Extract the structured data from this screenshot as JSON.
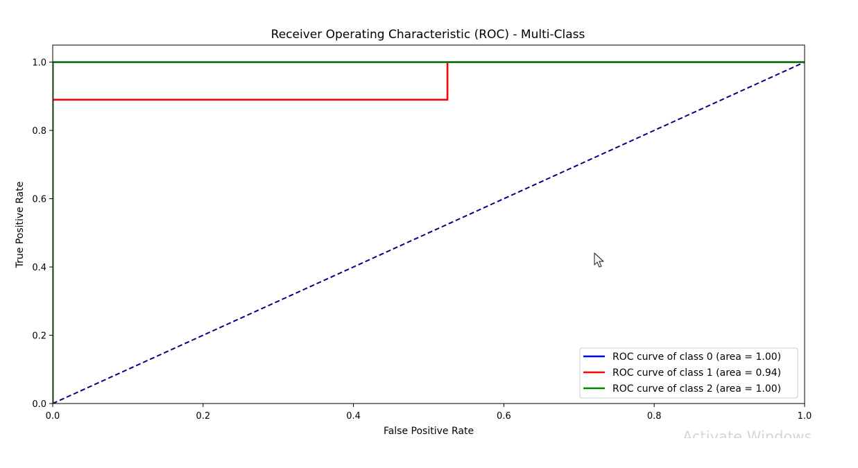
{
  "chart_data": {
    "type": "line",
    "title": "Receiver Operating Characteristic (ROC) - Multi-Class",
    "xlabel": "False Positive Rate",
    "ylabel": "True Positive Rate",
    "xlim": [
      0.0,
      1.0
    ],
    "ylim": [
      0.0,
      1.05
    ],
    "xticks": [
      "0.0",
      "0.2",
      "0.4",
      "0.6",
      "0.8",
      "1.0"
    ],
    "yticks": [
      "0.0",
      "0.2",
      "0.4",
      "0.6",
      "0.8",
      "1.0"
    ],
    "xtick_values": [
      0.0,
      0.2,
      0.4,
      0.6,
      0.8,
      1.0
    ],
    "ytick_values": [
      0.0,
      0.2,
      0.4,
      0.6,
      0.8,
      1.0
    ],
    "grid": false,
    "legend_position": "lower-right",
    "series": [
      {
        "name": "ROC curve of class 0 (area = 1.00)",
        "color": "#0000ff",
        "x": [
          0.0,
          0.0,
          1.0
        ],
        "y": [
          0.0,
          1.0,
          1.0
        ]
      },
      {
        "name": "ROC curve of class 1 (area = 0.94)",
        "color": "#ff0000",
        "x": [
          0.0,
          0.0,
          0.525,
          0.525,
          1.0
        ],
        "y": [
          0.0,
          0.89,
          0.89,
          1.0,
          1.0
        ]
      },
      {
        "name": "ROC curve of class 2 (area = 1.00)",
        "color": "#008000",
        "x": [
          0.0,
          0.0,
          1.0
        ],
        "y": [
          0.0,
          1.0,
          1.0
        ]
      }
    ],
    "reference_line": {
      "color": "#000080",
      "style": "dashed",
      "x": [
        0.0,
        1.0
      ],
      "y": [
        0.0,
        1.0
      ]
    }
  },
  "watermark": {
    "text": "Activate Windows"
  },
  "cursor_icon": "mouse-pointer-icon"
}
